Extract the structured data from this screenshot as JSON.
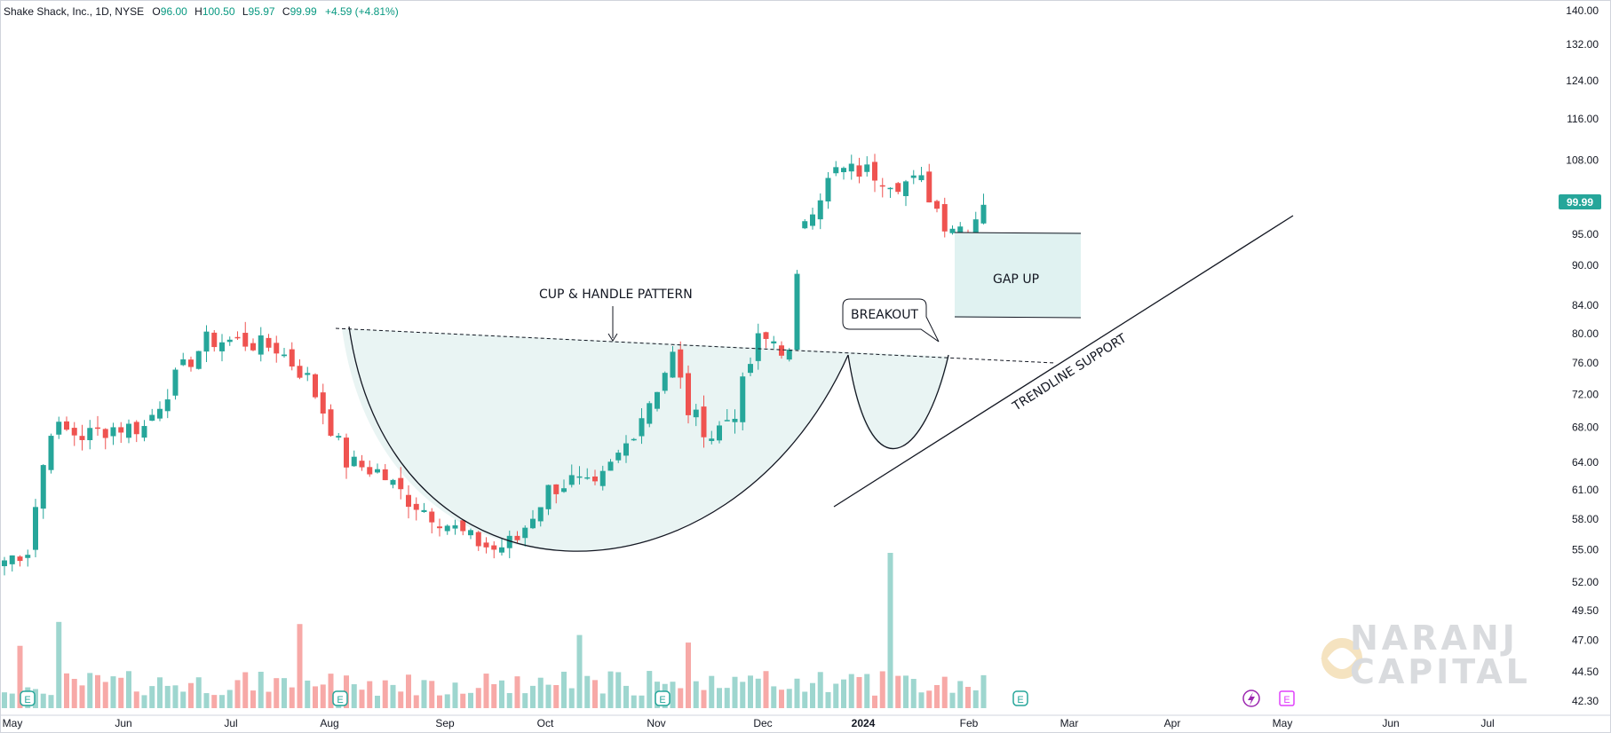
{
  "legend": {
    "symbol": "Shake Shack, Inc., 1D, NYSE",
    "o_label": "O",
    "o_value": "96.00",
    "h_label": "H",
    "h_value": "100.50",
    "l_label": "L",
    "l_value": "95.97",
    "c_label": "C",
    "c_value": "99.99",
    "change": "+4.59 (+4.81%)"
  },
  "price_badge": "99.99",
  "colors": {
    "up": "#26a69a",
    "down": "#ef5350",
    "vol_up": "#9ed6cf",
    "vol_down": "#f7a9a7",
    "shade": "#e8f3f2",
    "gap_box": "#e0f2f1"
  },
  "watermark": {
    "line1": "NARANJ",
    "line2": "CAPITAL"
  },
  "event_icons": {
    "earnings_label": "E",
    "flash_icon": "lightning-icon"
  },
  "chart_data": {
    "type": "candlestick",
    "title": "Shake Shack, Inc., 1D, NYSE",
    "y_scale": "log",
    "ylim": [
      42.3,
      140.0
    ],
    "y_ticks": [
      "140.00",
      "132.00",
      "124.00",
      "116.00",
      "108.00",
      "99.99",
      "95.00",
      "90.00",
      "84.00",
      "80.00",
      "76.00",
      "72.00",
      "68.00",
      "64.00",
      "61.00",
      "58.00",
      "55.00",
      "52.00",
      "49.50",
      "47.00",
      "44.50",
      "42.30"
    ],
    "x_ticks": [
      "May",
      "Jun",
      "Jul",
      "Aug",
      "Sep",
      "Oct",
      "Nov",
      "Dec",
      "2024",
      "Feb",
      "Mar",
      "Apr",
      "May",
      "Jun",
      "Jul"
    ],
    "price_path": [
      [
        0,
        54
      ],
      [
        3,
        55
      ],
      [
        6,
        68
      ],
      [
        10,
        67
      ],
      [
        14,
        68
      ],
      [
        18,
        68
      ],
      [
        22,
        74
      ],
      [
        26,
        79
      ],
      [
        30,
        79
      ],
      [
        35,
        78
      ],
      [
        39,
        74
      ],
      [
        44,
        64
      ],
      [
        48,
        63
      ],
      [
        52,
        60
      ],
      [
        56,
        58
      ],
      [
        60,
        56
      ],
      [
        63,
        55
      ],
      [
        66,
        56
      ],
      [
        70,
        61
      ],
      [
        73,
        62
      ],
      [
        76,
        61
      ],
      [
        80,
        66
      ],
      [
        84,
        73
      ],
      [
        86,
        77
      ],
      [
        88,
        70
      ],
      [
        91,
        67
      ],
      [
        94,
        70
      ],
      [
        97,
        79
      ],
      [
        99,
        79
      ],
      [
        101,
        77
      ],
      [
        103,
        98
      ],
      [
        107,
        106
      ],
      [
        111,
        106
      ],
      [
        115,
        104
      ],
      [
        118,
        104
      ],
      [
        121,
        97
      ],
      [
        124,
        96
      ],
      [
        126,
        99.99
      ]
    ],
    "last_close": 99.99,
    "annotations": {
      "pattern_label": "CUP & HANDLE PATTERN",
      "breakout_label": "BREAKOUT",
      "gap_label": "GAP UP",
      "trendline_label": "TRENDLINE SUPPORT"
    },
    "resistance_line": {
      "from": [
        0,
        80.3
      ],
      "to": [
        104,
        75.8
      ]
    },
    "gap_zone": {
      "from_price": 81.3,
      "to_price": 94.8
    },
    "earnings_markers_label": "E"
  }
}
